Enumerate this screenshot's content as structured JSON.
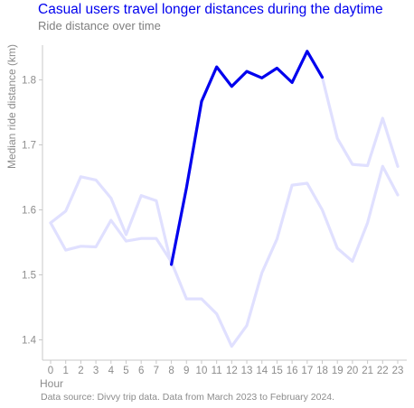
{
  "header": {
    "title": "Casual users travel longer distances during the daytime",
    "subtitle": "Ride distance over time"
  },
  "caption": "Data source: Divvy trip data. Data from March 2023 to February 2024.",
  "colors": {
    "title": "#0000ee",
    "highlight": "#0000ee",
    "muted": "#e0e0ff",
    "axis_text": "#8c8c8c"
  },
  "chart_data": {
    "type": "line",
    "xlabel": "Hour",
    "ylabel": "Median ride distance (km)",
    "x": [
      0,
      1,
      2,
      3,
      4,
      5,
      6,
      7,
      8,
      9,
      10,
      11,
      12,
      13,
      14,
      15,
      16,
      17,
      18,
      19,
      20,
      21,
      22,
      23
    ],
    "xticks": [
      "0",
      "1",
      "2",
      "3",
      "4",
      "5",
      "6",
      "7",
      "8",
      "9",
      "10",
      "11",
      "12",
      "13",
      "14",
      "15",
      "16",
      "17",
      "18",
      "19",
      "20",
      "21",
      "22",
      "23"
    ],
    "ylim": [
      1.35,
      1.87
    ],
    "yticks": [
      "1.4",
      "1.5",
      "1.6",
      "1.7",
      "1.8"
    ],
    "ytick_values": [
      1.4,
      1.5,
      1.6,
      1.7,
      1.8
    ],
    "grid": false,
    "series": [
      {
        "style": "muted",
        "values": [
          1.58,
          1.538,
          1.544,
          1.543,
          1.584,
          1.552,
          1.556,
          1.556,
          1.52,
          1.463,
          1.463,
          1.44,
          1.39,
          1.422,
          1.503,
          1.555,
          1.638,
          1.641,
          1.6,
          1.541,
          1.521,
          1.58,
          1.667,
          1.623
        ]
      },
      {
        "style": "muted",
        "values": [
          1.58,
          1.598,
          1.651,
          1.646,
          1.618,
          1.562,
          1.622,
          1.614,
          1.516,
          1.634,
          1.767,
          1.82,
          1.79,
          1.813,
          1.803,
          1.818,
          1.796,
          1.844,
          1.804,
          1.71,
          1.67,
          1.668,
          1.741,
          1.667
        ]
      },
      {
        "style": "highlight",
        "x": [
          8,
          9,
          10,
          11,
          12,
          13,
          14,
          15,
          16,
          17,
          18
        ],
        "values": [
          1.516,
          1.634,
          1.767,
          1.82,
          1.79,
          1.813,
          1.803,
          1.818,
          1.796,
          1.844,
          1.804
        ]
      }
    ]
  }
}
